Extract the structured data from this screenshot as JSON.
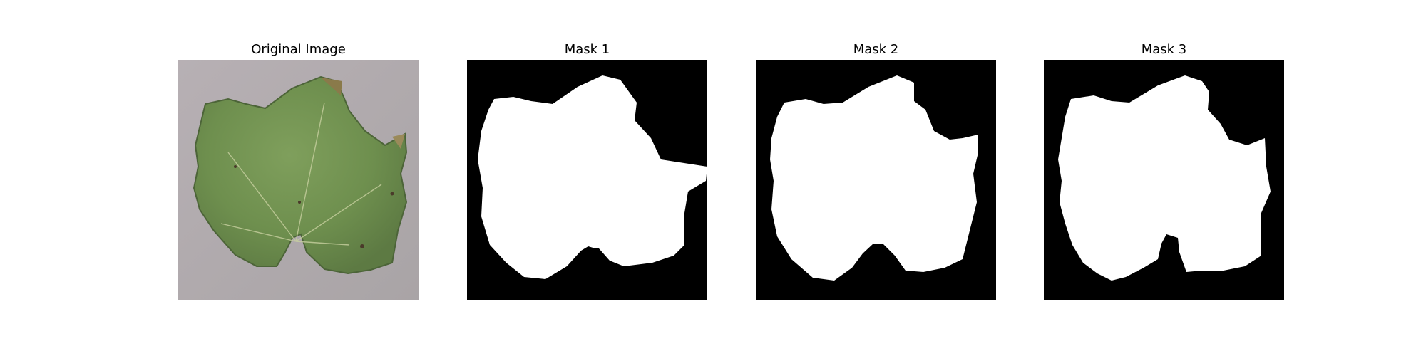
{
  "panels": [
    {
      "title": "Original Image"
    },
    {
      "title": "Mask 1"
    },
    {
      "title": "Mask 2"
    },
    {
      "title": "Mask 3"
    }
  ]
}
